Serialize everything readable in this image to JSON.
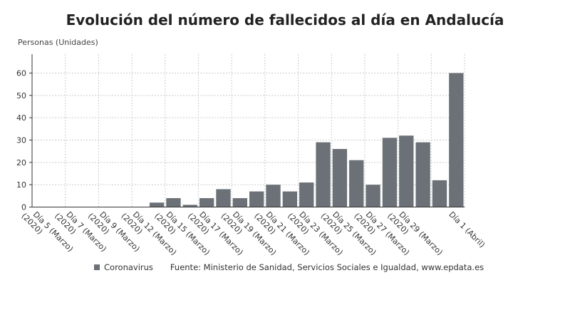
{
  "chart_data": {
    "type": "bar",
    "title": "Evolución del número de fallecidos al día en Andalucía",
    "ylabel": "Personas (Unidades)",
    "xlabel": "",
    "ylim": [
      0,
      65
    ],
    "yticks": [
      0,
      10,
      20,
      30,
      40,
      50,
      60
    ],
    "grid": true,
    "category_count": 26,
    "tick_labels": [
      {
        "index": 0,
        "line1": "Día 5 (Marzo)",
        "line2": "(2020)"
      },
      {
        "index": 2,
        "line1": "Día 7 (Marzo)",
        "line2": "(2020)"
      },
      {
        "index": 4,
        "line1": "Día 9 (Marzo)",
        "line2": "(2020)"
      },
      {
        "index": 6,
        "line1": "Día 12 (Marzo)",
        "line2": "(2020)"
      },
      {
        "index": 8,
        "line1": "Día 15 (Marzo)",
        "line2": "(2020)"
      },
      {
        "index": 10,
        "line1": "Día 17 (Marzo)",
        "line2": "(2020)"
      },
      {
        "index": 12,
        "line1": "Día 19 (Marzo)",
        "line2": "(2020)"
      },
      {
        "index": 14,
        "line1": "Día 21 (Marzo)",
        "line2": "(2020)"
      },
      {
        "index": 16,
        "line1": "Día 23 (Marzo)",
        "line2": "(2020)"
      },
      {
        "index": 18,
        "line1": "Día 25 (Marzo)",
        "line2": "(2020)"
      },
      {
        "index": 20,
        "line1": "Día 27 (Marzo)",
        "line2": "(2020)"
      },
      {
        "index": 22,
        "line1": "Día 29 (Marzo)",
        "line2": "(2020)"
      },
      {
        "index": 25,
        "line1": "Día 1 (Abril)",
        "line2": ""
      }
    ],
    "series": [
      {
        "name": "Coronavirus",
        "color": "#6b7177",
        "values": [
          0,
          0,
          0,
          0,
          0,
          0,
          0,
          2,
          4,
          1,
          4,
          8,
          4,
          7,
          10,
          7,
          11,
          29,
          26,
          21,
          10,
          31,
          32,
          29,
          12,
          60
        ]
      }
    ],
    "legend_position": "bottom",
    "source": "Fuente: Ministerio de Sanidad, Servicios Sociales e Igualdad, www.epdata.es"
  }
}
